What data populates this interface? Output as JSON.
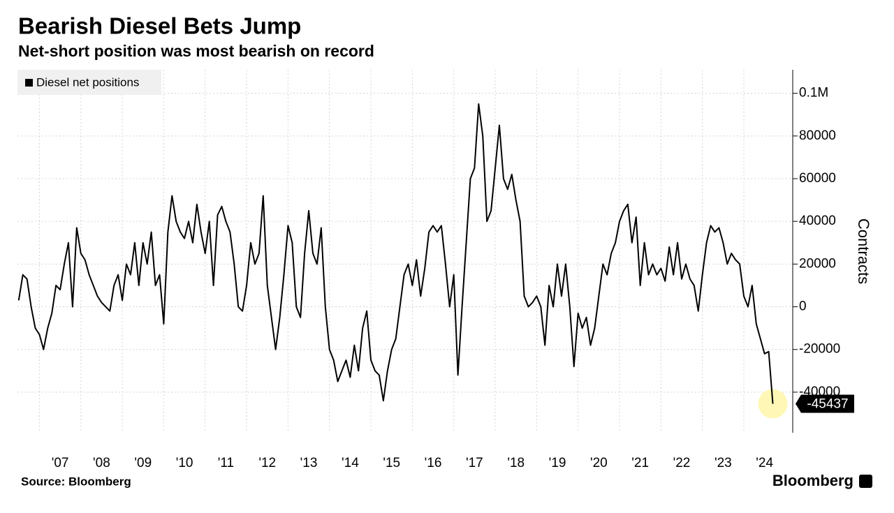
{
  "chart_data": {
    "type": "line",
    "title": "Bearish Diesel Bets Jump",
    "subtitle": "Net-short position was most bearish on record",
    "source": "Source: Bloomberg",
    "brand": "Bloomberg",
    "y_label": "Contracts",
    "legend_position": "top-left",
    "grid": true,
    "xlim": [
      2006.47,
      2025.18
    ],
    "ylim": [
      -59000,
      111000
    ],
    "xticks": [
      {
        "value": 2007,
        "label": "'07"
      },
      {
        "value": 2008,
        "label": "'08"
      },
      {
        "value": 2009,
        "label": "'09"
      },
      {
        "value": 2010,
        "label": "'10"
      },
      {
        "value": 2011,
        "label": "'11"
      },
      {
        "value": 2012,
        "label": "'12"
      },
      {
        "value": 2013,
        "label": "'13"
      },
      {
        "value": 2014,
        "label": "'14"
      },
      {
        "value": 2015,
        "label": "'15"
      },
      {
        "value": 2016,
        "label": "'16"
      },
      {
        "value": 2017,
        "label": "'17"
      },
      {
        "value": 2018,
        "label": "'18"
      },
      {
        "value": 2019,
        "label": "'19"
      },
      {
        "value": 2020,
        "label": "'20"
      },
      {
        "value": 2021,
        "label": "'21"
      },
      {
        "value": 2022,
        "label": "'22"
      },
      {
        "value": 2023,
        "label": "'23"
      },
      {
        "value": 2024,
        "label": "'24"
      }
    ],
    "yticks": [
      -40000,
      -20000,
      0,
      20000,
      40000,
      60000,
      80000,
      {
        "value": 100000,
        "label": "0.1M"
      }
    ],
    "x": [
      2006.5,
      2006.6,
      2006.7,
      2006.8,
      2006.9,
      2007.0,
      2007.1,
      2007.2,
      2007.3,
      2007.4,
      2007.5,
      2007.6,
      2007.7,
      2007.8,
      2007.9,
      2008.0,
      2008.1,
      2008.2,
      2008.3,
      2008.4,
      2008.5,
      2008.6,
      2008.7,
      2008.8,
      2008.9,
      2009.0,
      2009.1,
      2009.2,
      2009.3,
      2009.4,
      2009.5,
      2009.6,
      2009.7,
      2009.8,
      2009.9,
      2010.0,
      2010.1,
      2010.2,
      2010.3,
      2010.4,
      2010.5,
      2010.6,
      2010.7,
      2010.8,
      2010.9,
      2011.0,
      2011.1,
      2011.2,
      2011.3,
      2011.4,
      2011.5,
      2011.6,
      2011.7,
      2011.8,
      2011.9,
      2012.0,
      2012.1,
      2012.2,
      2012.3,
      2012.4,
      2012.5,
      2012.6,
      2012.7,
      2012.8,
      2012.9,
      2013.0,
      2013.1,
      2013.2,
      2013.3,
      2013.4,
      2013.5,
      2013.6,
      2013.7,
      2013.8,
      2013.9,
      2014.0,
      2014.1,
      2014.2,
      2014.3,
      2014.4,
      2014.5,
      2014.6,
      2014.7,
      2014.8,
      2014.9,
      2015.0,
      2015.1,
      2015.2,
      2015.3,
      2015.4,
      2015.5,
      2015.6,
      2015.7,
      2015.8,
      2015.9,
      2016.0,
      2016.1,
      2016.2,
      2016.3,
      2016.4,
      2016.5,
      2016.6,
      2016.7,
      2016.8,
      2016.9,
      2017.0,
      2017.1,
      2017.2,
      2017.3,
      2017.4,
      2017.5,
      2017.6,
      2017.7,
      2017.8,
      2017.9,
      2018.0,
      2018.1,
      2018.2,
      2018.3,
      2018.4,
      2018.5,
      2018.6,
      2018.7,
      2018.8,
      2018.9,
      2019.0,
      2019.1,
      2019.2,
      2019.3,
      2019.4,
      2019.5,
      2019.6,
      2019.7,
      2019.8,
      2019.9,
      2020.0,
      2020.1,
      2020.2,
      2020.3,
      2020.4,
      2020.5,
      2020.6,
      2020.7,
      2020.8,
      2020.9,
      2021.0,
      2021.1,
      2021.2,
      2021.3,
      2021.4,
      2021.5,
      2021.6,
      2021.7,
      2021.8,
      2021.9,
      2022.0,
      2022.1,
      2022.2,
      2022.3,
      2022.4,
      2022.5,
      2022.6,
      2022.7,
      2022.8,
      2022.9,
      2023.0,
      2023.1,
      2023.2,
      2023.3,
      2023.4,
      2023.5,
      2023.6,
      2023.7,
      2023.8,
      2023.9,
      2024.0,
      2024.1,
      2024.2,
      2024.3,
      2024.4,
      2024.5,
      2024.6,
      2024.7
    ],
    "series": [
      {
        "name": "Diesel net positions",
        "color": "#000000",
        "values": [
          3000,
          15000,
          13000,
          0,
          -10000,
          -13000,
          -20000,
          -10000,
          -3000,
          10000,
          8000,
          20000,
          30000,
          0,
          37000,
          25000,
          22000,
          15000,
          10000,
          5000,
          2000,
          0,
          -2000,
          10000,
          15000,
          3000,
          20000,
          15000,
          30000,
          10000,
          30000,
          20000,
          35000,
          10000,
          15000,
          -8000,
          35000,
          52000,
          40000,
          35000,
          32000,
          40000,
          30000,
          48000,
          35000,
          25000,
          40000,
          10000,
          43000,
          47000,
          40000,
          35000,
          20000,
          0,
          -2000,
          10000,
          30000,
          20000,
          25000,
          52000,
          10000,
          -5000,
          -20000,
          -5000,
          15000,
          38000,
          30000,
          0,
          -5000,
          25000,
          45000,
          25000,
          20000,
          37000,
          0,
          -20000,
          -25000,
          -35000,
          -30000,
          -25000,
          -33000,
          -18000,
          -30000,
          -10000,
          -2000,
          -25000,
          -30000,
          -32000,
          -44000,
          -30000,
          -20000,
          -15000,
          0,
          15000,
          20000,
          10000,
          22000,
          5000,
          18000,
          35000,
          38000,
          35000,
          38000,
          20000,
          0,
          15000,
          -32000,
          0,
          30000,
          60000,
          65000,
          95000,
          80000,
          40000,
          45000,
          65000,
          85000,
          60000,
          55000,
          62000,
          50000,
          40000,
          5000,
          0,
          2000,
          5000,
          0,
          -18000,
          10000,
          0,
          20000,
          5000,
          20000,
          0,
          -28000,
          -3000,
          -10000,
          -5000,
          -18000,
          -10000,
          5000,
          20000,
          15000,
          25000,
          30000,
          40000,
          45000,
          48000,
          30000,
          42000,
          10000,
          30000,
          15000,
          20000,
          15000,
          18000,
          12000,
          28000,
          15000,
          30000,
          13000,
          20000,
          13000,
          10000,
          -2000,
          15000,
          30000,
          38000,
          35000,
          37000,
          30000,
          20000,
          25000,
          22000,
          20000,
          5000,
          0,
          10000,
          -8000,
          -15000,
          -22000,
          -21000,
          -45437
        ]
      }
    ]
  }
}
